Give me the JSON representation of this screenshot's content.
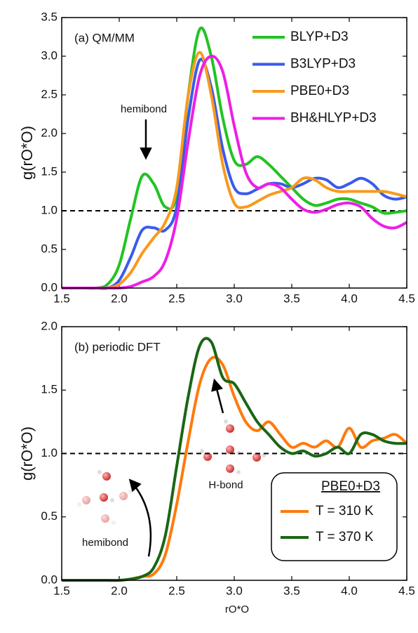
{
  "chart_data": [
    {
      "type": "line",
      "title": "(a) QM/MM",
      "ylabel": "g(rO*O)",
      "x": [
        1.5,
        1.6,
        1.7,
        1.8,
        1.9,
        2.0,
        2.1,
        2.2,
        2.3,
        2.4,
        2.5,
        2.6,
        2.7,
        2.8,
        2.9,
        3.0,
        3.1,
        3.2,
        3.3,
        3.4,
        3.5,
        3.6,
        3.7,
        3.8,
        3.9,
        4.0,
        4.1,
        4.2,
        4.3,
        4.4,
        4.5
      ],
      "series": [
        {
          "name": "BLYP+D3",
          "color": "#22c322",
          "values": [
            0,
            0,
            0,
            0,
            0.05,
            0.3,
            0.9,
            1.45,
            1.35,
            1.05,
            1.2,
            2.5,
            3.35,
            3.0,
            2.2,
            1.65,
            1.6,
            1.7,
            1.6,
            1.45,
            1.3,
            1.15,
            1.07,
            1.1,
            1.15,
            1.15,
            1.1,
            1.05,
            0.97,
            0.98,
            1.0
          ]
        },
        {
          "name": "B3LYP+D3",
          "color": "#3a5bea",
          "values": [
            0,
            0,
            0,
            0,
            0,
            0.1,
            0.4,
            0.75,
            0.78,
            0.75,
            1.05,
            2.2,
            2.95,
            2.6,
            1.8,
            1.3,
            1.22,
            1.28,
            1.35,
            1.35,
            1.3,
            1.35,
            1.42,
            1.4,
            1.3,
            1.35,
            1.42,
            1.35,
            1.2,
            1.15,
            1.18
          ]
        },
        {
          "name": "PBE0+D3",
          "color": "#f89a1c",
          "values": [
            0,
            0,
            0,
            0,
            0,
            0.05,
            0.2,
            0.45,
            0.65,
            0.85,
            1.3,
            2.5,
            3.05,
            2.5,
            1.6,
            1.1,
            1.05,
            1.12,
            1.2,
            1.25,
            1.3,
            1.42,
            1.4,
            1.3,
            1.25,
            1.25,
            1.25,
            1.25,
            1.25,
            1.22,
            1.18
          ]
        },
        {
          "name": "BH&HLYP+D3",
          "color": "#ee1ee6",
          "values": [
            0,
            0,
            0,
            0,
            0,
            0,
            0.02,
            0.08,
            0.15,
            0.35,
            0.9,
            1.9,
            2.75,
            3.0,
            2.8,
            2.1,
            1.5,
            1.3,
            1.35,
            1.3,
            1.15,
            1.02,
            0.98,
            1.02,
            1.08,
            1.1,
            1.05,
            0.9,
            0.8,
            0.78,
            0.85
          ]
        }
      ],
      "xlim": [
        1.5,
        4.5
      ],
      "xticks": [
        1.5,
        {
          "value": 2,
          "label": "2.0"
        },
        2.5,
        {
          "value": 3,
          "label": "3.0"
        },
        3.5,
        {
          "value": 4,
          "label": "4.0"
        },
        4.5
      ],
      "ylim": [
        0,
        3.5
      ],
      "yticks": [
        {
          "value": 0,
          "label": "0.0"
        },
        0.5,
        {
          "value": 1,
          "label": "1.0"
        },
        1.5,
        {
          "value": 2,
          "label": "2.0"
        },
        2.5,
        {
          "value": 3,
          "label": "3.0"
        },
        3.5
      ],
      "refline": 1,
      "legend": "upper right",
      "annotations": [
        "hemibond"
      ]
    },
    {
      "type": "line",
      "title": "(b) periodic DFT",
      "ylabel": "g(rO*O)",
      "xlabel": "rO*O",
      "x": [
        1.5,
        1.6,
        1.7,
        1.8,
        1.9,
        2.0,
        2.1,
        2.2,
        2.3,
        2.4,
        2.5,
        2.6,
        2.7,
        2.8,
        2.9,
        3.0,
        3.1,
        3.2,
        3.3,
        3.4,
        3.5,
        3.6,
        3.7,
        3.8,
        3.9,
        4.0,
        4.1,
        4.2,
        4.3,
        4.4,
        4.5
      ],
      "series": [
        {
          "name": "T = 310 K",
          "color": "#ff7a0c",
          "values": [
            0,
            0,
            0,
            0,
            0,
            0,
            0.01,
            0.03,
            0.05,
            0.2,
            0.6,
            1.1,
            1.55,
            1.75,
            1.7,
            1.45,
            1.25,
            1.18,
            1.25,
            1.15,
            1.05,
            1.08,
            1.05,
            1.1,
            1.05,
            1.2,
            1.05,
            1.1,
            1.12,
            1.15,
            1.08
          ]
        },
        {
          "name": "T = 370 K",
          "color": "#1a6614",
          "values": [
            0,
            0,
            0,
            0,
            0,
            0,
            0.01,
            0.03,
            0.1,
            0.35,
            0.9,
            1.45,
            1.85,
            1.88,
            1.6,
            1.55,
            1.4,
            1.25,
            1.15,
            1.05,
            1.0,
            1.02,
            0.98,
            1.0,
            1.05,
            1.0,
            1.15,
            1.15,
            1.1,
            1.08,
            1.08
          ]
        }
      ],
      "xlim": [
        1.5,
        4.5
      ],
      "xticks": [
        1.5,
        {
          "value": 2,
          "label": "2.0"
        },
        2.5,
        {
          "value": 3,
          "label": "3.0"
        },
        3.5,
        {
          "value": 4,
          "label": "4.0"
        },
        4.5
      ],
      "ylim": [
        0,
        2
      ],
      "yticks": [
        {
          "value": 0,
          "label": "0.0"
        },
        0.5,
        {
          "value": 1,
          "label": "1.0"
        },
        1.5,
        {
          "value": 2,
          "label": "2.0"
        }
      ],
      "refline": 1,
      "legend": "lower right",
      "legend_title": "PBE0+D3",
      "annotations": [
        "H-bond",
        "hemibond"
      ]
    }
  ]
}
